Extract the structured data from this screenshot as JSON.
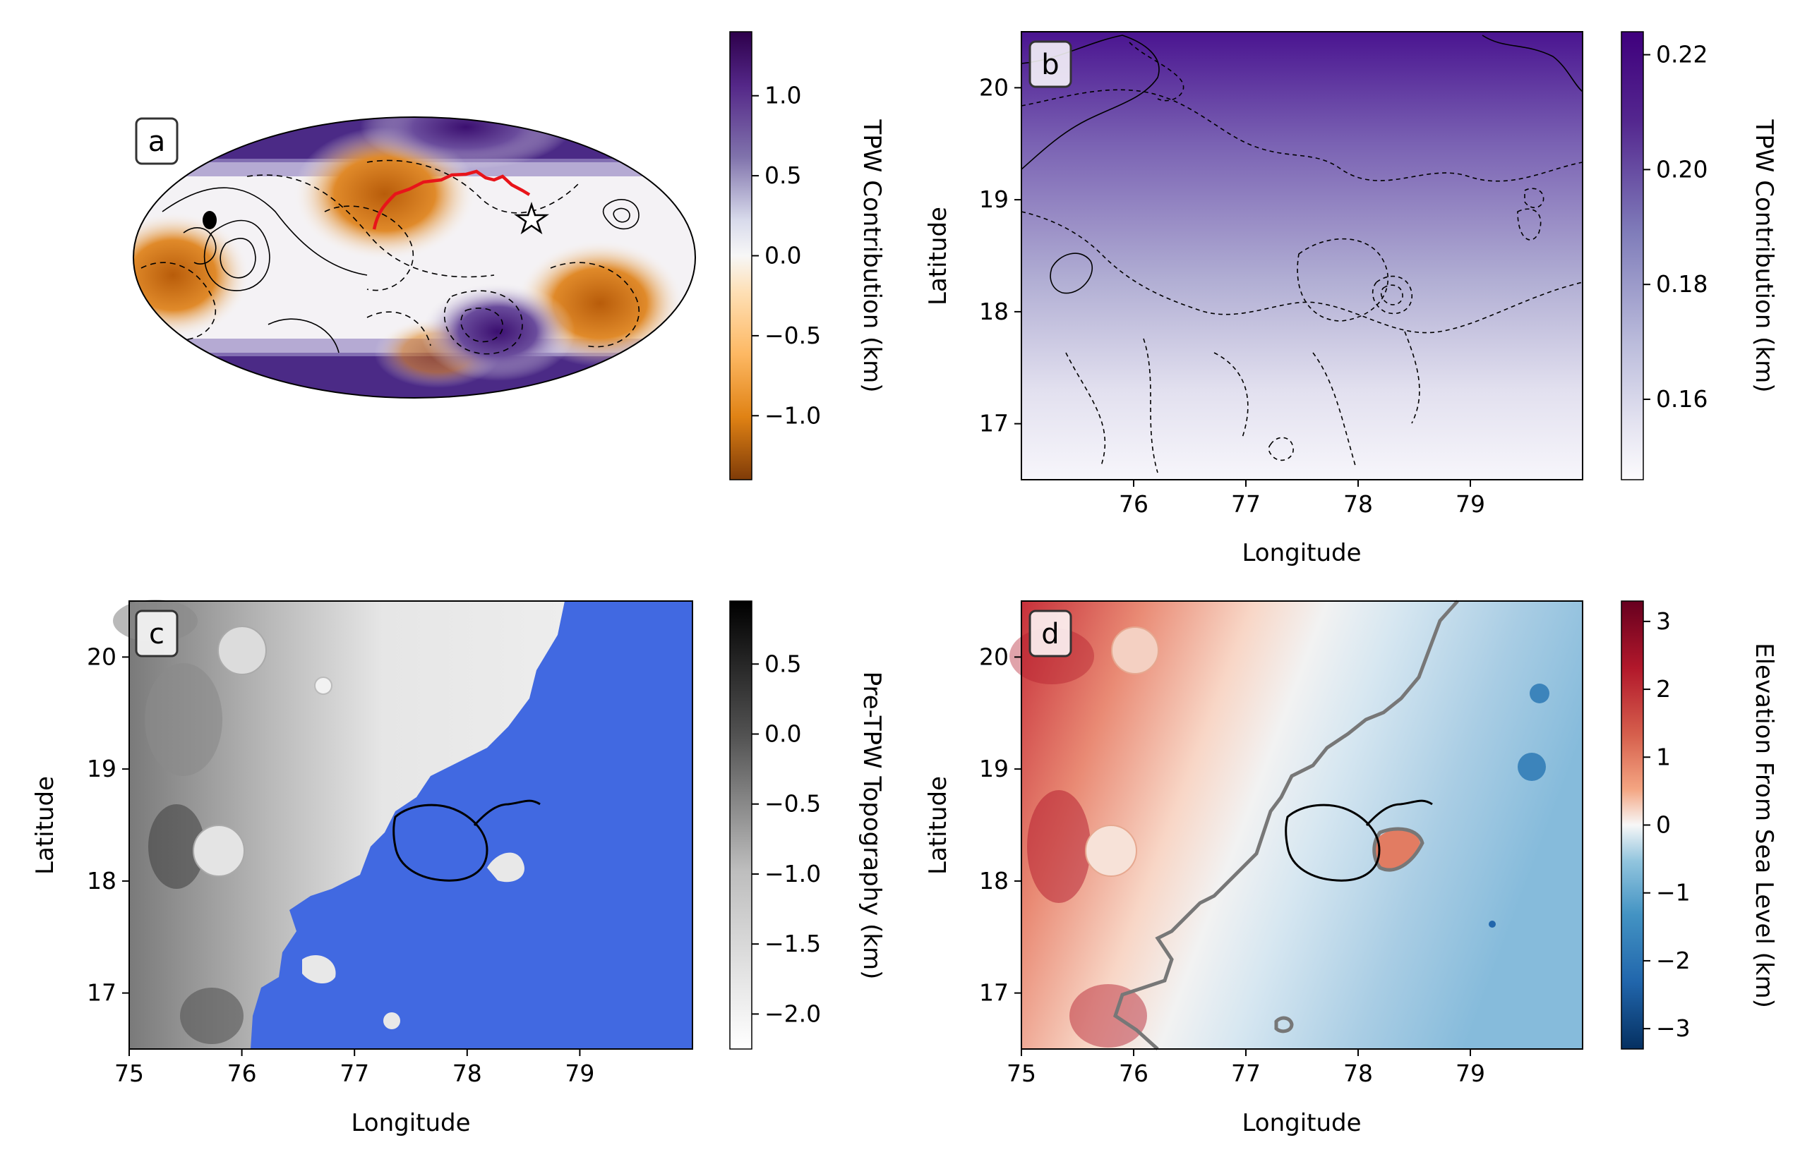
{
  "chart_data": [
    {
      "panel": "a",
      "type": "heatmap",
      "projection": "mollweide",
      "colormap": "PuOr",
      "colorbar": {
        "label": "TPW Contribution (km)",
        "range": [
          -1.4,
          1.4
        ],
        "ticks": [
          1.0,
          0.5,
          0.0,
          -0.5,
          -1.0
        ],
        "tick_labels": [
          "1.0",
          "0.5",
          "0.0",
          "−0.5",
          "−1.0"
        ]
      },
      "overlays": [
        "topography contours",
        "red path",
        "star marker"
      ],
      "grid": false
    },
    {
      "panel": "b",
      "type": "heatmap",
      "colormap": "Purples",
      "xlabel": "Longitude",
      "ylabel": "Latitude",
      "xlim": [
        75,
        80
      ],
      "ylim": [
        16.5,
        20.5
      ],
      "x_ticks": [
        "76",
        "77",
        "78",
        "79"
      ],
      "y_ticks": [
        "17",
        "18",
        "19",
        "20"
      ],
      "colorbar": {
        "label": "TPW Contribution (km)",
        "range": [
          0.146,
          0.224
        ],
        "ticks": [
          0.22,
          0.2,
          0.18,
          0.16
        ],
        "tick_labels": [
          "0.22",
          "0.20",
          "0.18",
          "0.16"
        ]
      },
      "overlays": [
        "topography contours"
      ],
      "grid": false
    },
    {
      "panel": "c",
      "type": "heatmap",
      "colormap": "Greys",
      "xlabel": "Longitude",
      "ylabel": "Latitude",
      "xlim": [
        75,
        80
      ],
      "ylim": [
        16.5,
        20.5
      ],
      "x_ticks": [
        "75",
        "76",
        "77",
        "78",
        "79"
      ],
      "y_ticks": [
        "17",
        "18",
        "19",
        "20"
      ],
      "mask_color": "#4169e1",
      "colorbar": {
        "label": "Pre-TPW Topography (km)",
        "range": [
          -2.25,
          0.95
        ],
        "ticks": [
          0.5,
          0.0,
          -0.5,
          -1.0,
          -1.5,
          -2.0
        ],
        "tick_labels": [
          "0.5",
          "0.0",
          "−0.5",
          "−1.0",
          "−1.5",
          "−2.0"
        ]
      },
      "overlays": [
        "black crater outline"
      ],
      "grid": false
    },
    {
      "panel": "d",
      "type": "heatmap",
      "colormap": "RdBu_r",
      "xlabel": "Longitude",
      "ylabel": "Latitude",
      "xlim": [
        75,
        80
      ],
      "ylim": [
        16.5,
        20.5
      ],
      "x_ticks": [
        "75",
        "76",
        "77",
        "78",
        "79"
      ],
      "y_ticks": [
        "17",
        "18",
        "19",
        "20"
      ],
      "colorbar": {
        "label": "Elevation From Sea Level (km)",
        "range": [
          -3.3,
          3.3
        ],
        "ticks": [
          3,
          2,
          1,
          0,
          -1,
          -2,
          -3
        ],
        "tick_labels": [
          "3",
          "2",
          "1",
          "0",
          "−1",
          "−2",
          "−3"
        ]
      },
      "overlays": [
        "grey shoreline contour",
        "black crater outline"
      ],
      "grid": false
    }
  ]
}
